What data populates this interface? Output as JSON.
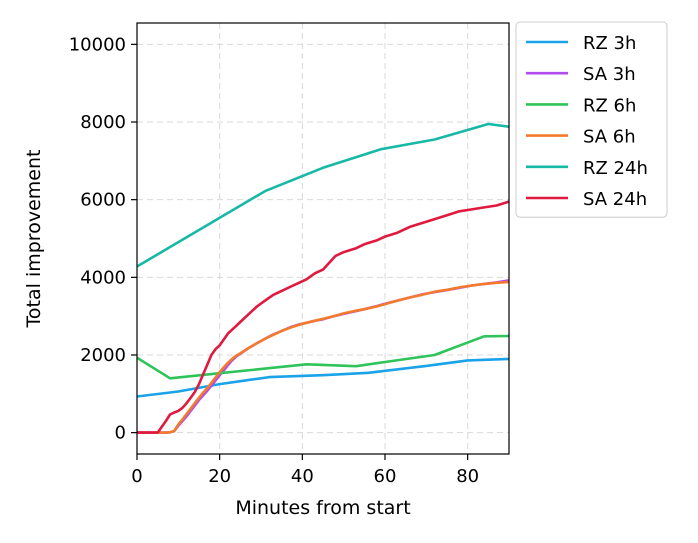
{
  "chart_data": {
    "type": "line",
    "title": "",
    "xlabel": "Minutes from start",
    "ylabel": "Total improvement",
    "xlim": [
      0,
      90
    ],
    "ylim": [
      -550,
      10550
    ],
    "xticks": [
      0,
      20,
      40,
      60,
      80
    ],
    "yticks": [
      0,
      2000,
      4000,
      6000,
      8000,
      10000
    ],
    "grid": true,
    "legend_position": "outside-top-right",
    "series": [
      {
        "name": "RZ 3h",
        "color": "#1aa3e8",
        "x": [
          0,
          10,
          20,
          32,
          45,
          56,
          70,
          80,
          90
        ],
        "y": [
          930,
          1060,
          1250,
          1430,
          1480,
          1540,
          1720,
          1860,
          1900
        ]
      },
      {
        "name": "SA 3h",
        "color": "#b04cf0",
        "x": [
          0,
          7,
          8,
          9,
          10,
          11,
          12,
          13,
          14,
          15,
          16,
          17,
          18,
          19,
          20,
          21,
          22,
          23,
          24,
          25,
          27,
          29,
          31,
          33,
          35,
          37,
          39,
          41,
          43,
          45,
          48,
          50,
          53,
          55,
          58,
          60,
          63,
          66,
          69,
          72,
          75,
          78,
          81,
          84,
          87,
          90
        ],
        "y": [
          0,
          0,
          10,
          40,
          180,
          300,
          420,
          560,
          700,
          840,
          960,
          1080,
          1210,
          1340,
          1480,
          1600,
          1740,
          1860,
          1960,
          2030,
          2180,
          2300,
          2420,
          2530,
          2620,
          2710,
          2780,
          2830,
          2880,
          2920,
          3010,
          3060,
          3130,
          3180,
          3260,
          3320,
          3400,
          3480,
          3560,
          3620,
          3670,
          3730,
          3790,
          3830,
          3870,
          3920
        ]
      },
      {
        "name": "RZ 6h",
        "color": "#2ec45a",
        "x": [
          0,
          8,
          20,
          31,
          41,
          53,
          60,
          72,
          84,
          90
        ],
        "y": [
          1930,
          1400,
          1530,
          1650,
          1760,
          1710,
          1820,
          2000,
          2480,
          2490
        ]
      },
      {
        "name": "SA 6h",
        "color": "#f47a2b",
        "x": [
          0,
          7,
          8,
          9,
          10,
          11,
          12,
          13,
          14,
          15,
          16,
          17,
          18,
          19,
          20,
          21,
          22,
          23,
          24,
          25,
          27,
          29,
          31,
          33,
          35,
          37,
          39,
          41,
          43,
          45,
          48,
          50,
          53,
          55,
          58,
          60,
          63,
          66,
          69,
          72,
          75,
          78,
          81,
          84,
          87,
          90
        ],
        "y": [
          0,
          0,
          10,
          40,
          210,
          340,
          480,
          620,
          760,
          900,
          1030,
          1150,
          1280,
          1420,
          1560,
          1680,
          1800,
          1900,
          1980,
          2040,
          2180,
          2300,
          2420,
          2520,
          2620,
          2700,
          2770,
          2830,
          2880,
          2930,
          3010,
          3070,
          3140,
          3180,
          3250,
          3310,
          3400,
          3480,
          3550,
          3630,
          3680,
          3740,
          3790,
          3830,
          3860,
          3880
        ]
      },
      {
        "name": "RZ 24h",
        "color": "#17b9a6",
        "x": [
          0,
          31,
          45,
          59,
          72,
          85,
          90
        ],
        "y": [
          4280,
          6220,
          6820,
          7300,
          7550,
          7950,
          7880
        ]
      },
      {
        "name": "SA 24h",
        "color": "#e0193f",
        "x": [
          0,
          5,
          6,
          7,
          8,
          9,
          10,
          11,
          12,
          13,
          14,
          15,
          16,
          17,
          18,
          19,
          20,
          21,
          22,
          23,
          24,
          25,
          27,
          29,
          31,
          33,
          35,
          37,
          39,
          41,
          43,
          45,
          48,
          50,
          53,
          55,
          58,
          60,
          63,
          66,
          69,
          72,
          75,
          78,
          81,
          84,
          87,
          90
        ],
        "y": [
          0,
          0,
          150,
          300,
          470,
          520,
          560,
          640,
          760,
          900,
          1050,
          1250,
          1500,
          1750,
          2000,
          2150,
          2250,
          2400,
          2550,
          2650,
          2750,
          2850,
          3050,
          3250,
          3400,
          3550,
          3650,
          3750,
          3850,
          3950,
          4100,
          4200,
          4550,
          4650,
          4750,
          4850,
          4950,
          5050,
          5150,
          5300,
          5400,
          5500,
          5600,
          5700,
          5750,
          5800,
          5850,
          5950
        ]
      }
    ]
  }
}
